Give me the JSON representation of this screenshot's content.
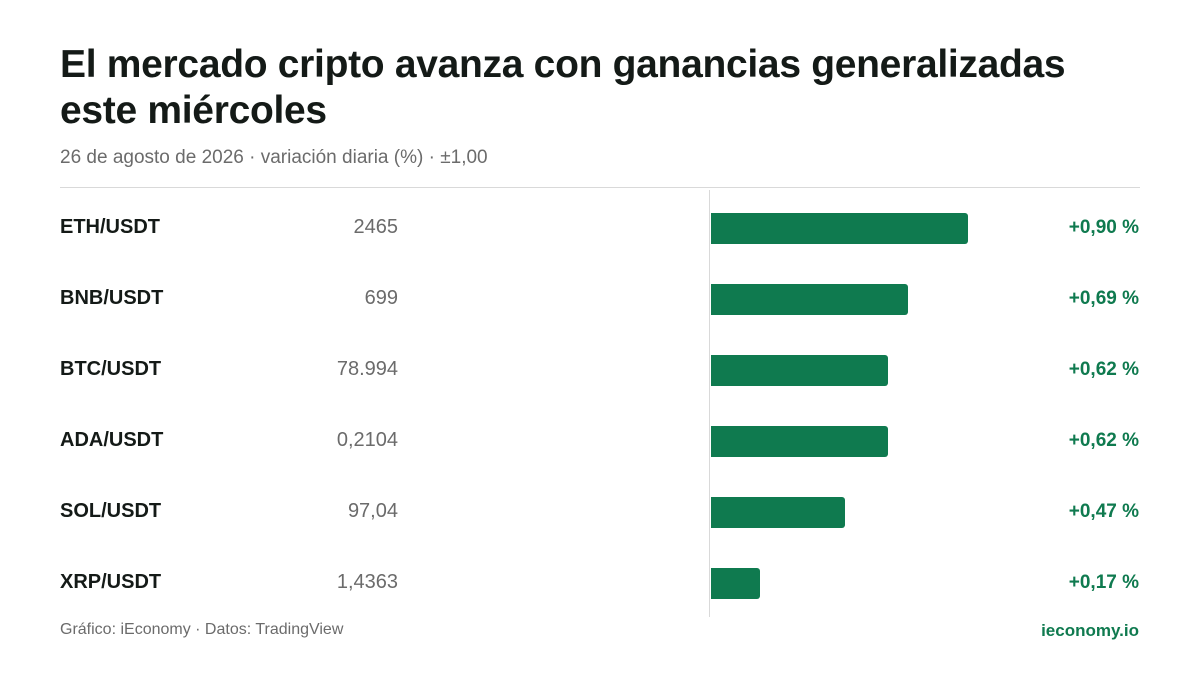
{
  "header": {
    "title": "El mercado cripto avanza con ganancias generalizadas este miércoles",
    "subtitle": "26 de agosto de 2026 · variación diaria (%) · ±1,00"
  },
  "footer": {
    "credit": "Gráfico: iEconomy · Datos: TradingView",
    "brand": "ieconomy.io"
  },
  "colors": {
    "positive": "#0f7a4f",
    "brand": "#0f7a4f",
    "text": "#141a17",
    "muted": "#6b6b6b",
    "rule": "#d9d9d9"
  },
  "chart_data": {
    "type": "bar",
    "orientation": "horizontal",
    "xlim": [
      -1.0,
      1.0
    ],
    "rows": [
      {
        "pair": "ETH/USDT",
        "price": "2465",
        "value": 0.9,
        "label": "+0,90 %"
      },
      {
        "pair": "BNB/USDT",
        "price": "699",
        "value": 0.69,
        "label": "+0,69 %"
      },
      {
        "pair": "BTC/USDT",
        "price": "78.994",
        "value": 0.62,
        "label": "+0,62 %"
      },
      {
        "pair": "ADA/USDT",
        "price": "0,2104",
        "value": 0.62,
        "label": "+0,62 %"
      },
      {
        "pair": "SOL/USDT",
        "price": "97,04",
        "value": 0.47,
        "label": "+0,47 %"
      },
      {
        "pair": "XRP/USDT",
        "price": "1,4363",
        "value": 0.17,
        "label": "+0,17 %"
      }
    ]
  }
}
